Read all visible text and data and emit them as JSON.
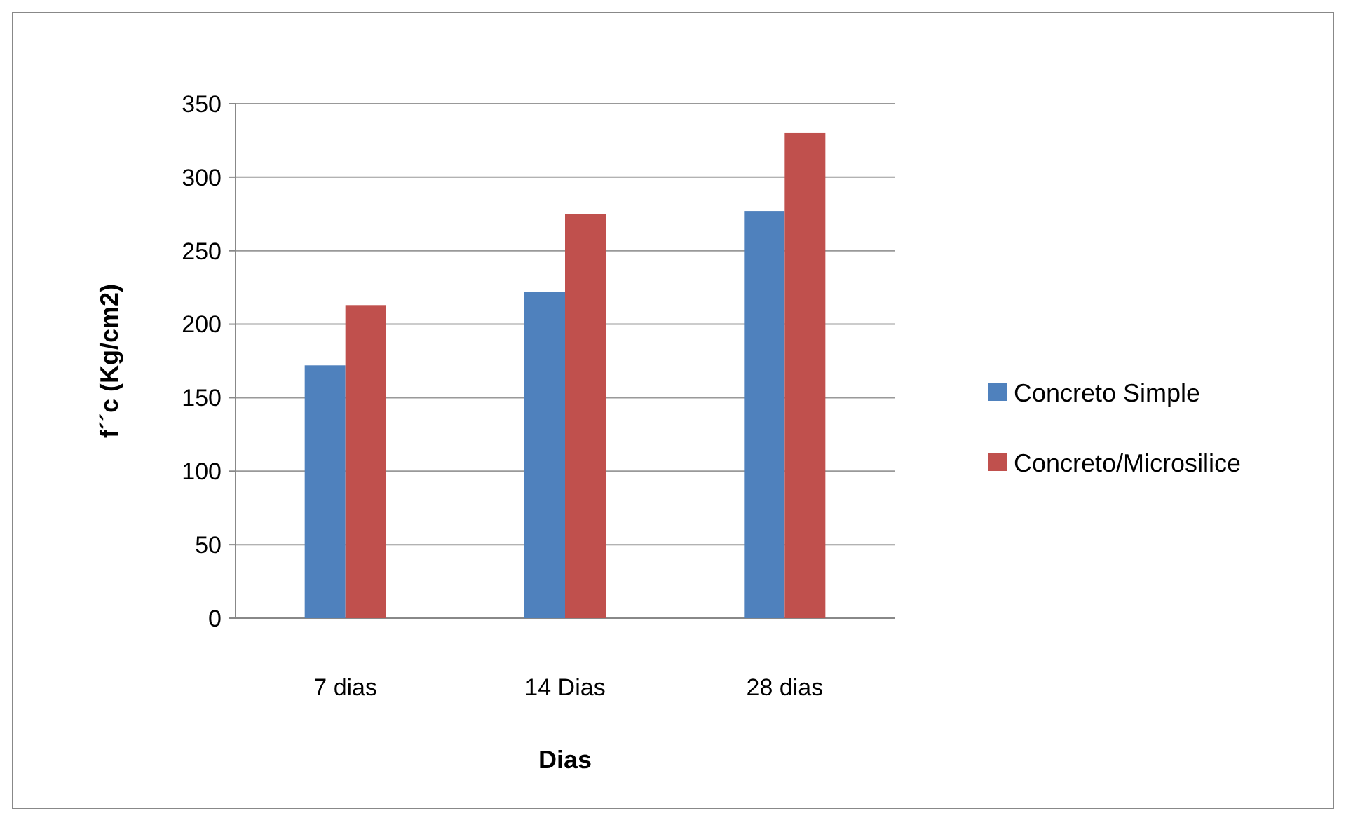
{
  "chart_data": {
    "type": "bar",
    "xlabel": "Dias",
    "ylabel": "f´´c    (Kg/cm2)",
    "categories": [
      "7 dias",
      "14 Dias",
      "28 dias"
    ],
    "series": [
      {
        "name": "Concreto Simple",
        "color": "#4f81bd",
        "values": [
          172,
          222,
          277
        ]
      },
      {
        "name": "Concreto/Microsilice",
        "color": "#c0504d",
        "values": [
          213,
          275,
          330
        ]
      }
    ],
    "ylim": [
      0,
      350
    ],
    "yticks": [
      0,
      50,
      100,
      150,
      200,
      250,
      300,
      350
    ],
    "grid": "y",
    "legend": "right"
  }
}
